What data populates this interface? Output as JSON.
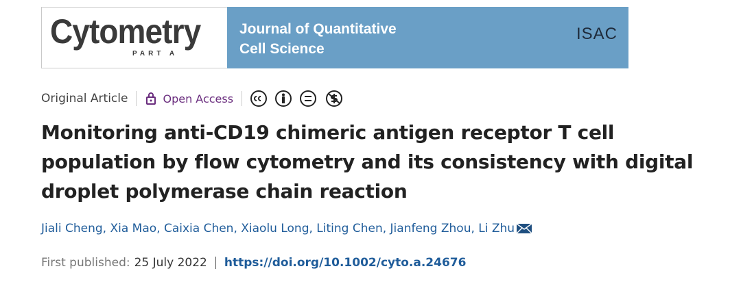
{
  "banner": {
    "journal": "Cytometry",
    "part": "PART A",
    "subtitle_lines": [
      "Journal of Quantitative",
      "Cell Science"
    ],
    "society": "ISAC"
  },
  "article_type": "Original Article",
  "access": "Open Access",
  "title": "Monitoring anti-CD19 chimeric antigen receptor T cell population by flow cytometry and its consistency with digital droplet polymerase chain reaction",
  "authors": "Jiali Cheng, Xia Mao, Caixia Chen, Xiaolu Long, Liting Chen, Jianfeng Zhou, Li Zhu",
  "published_label": "First published:",
  "published_date": "25 July 2022",
  "doi": "https://doi.org/10.1002/cyto.a.24676"
}
